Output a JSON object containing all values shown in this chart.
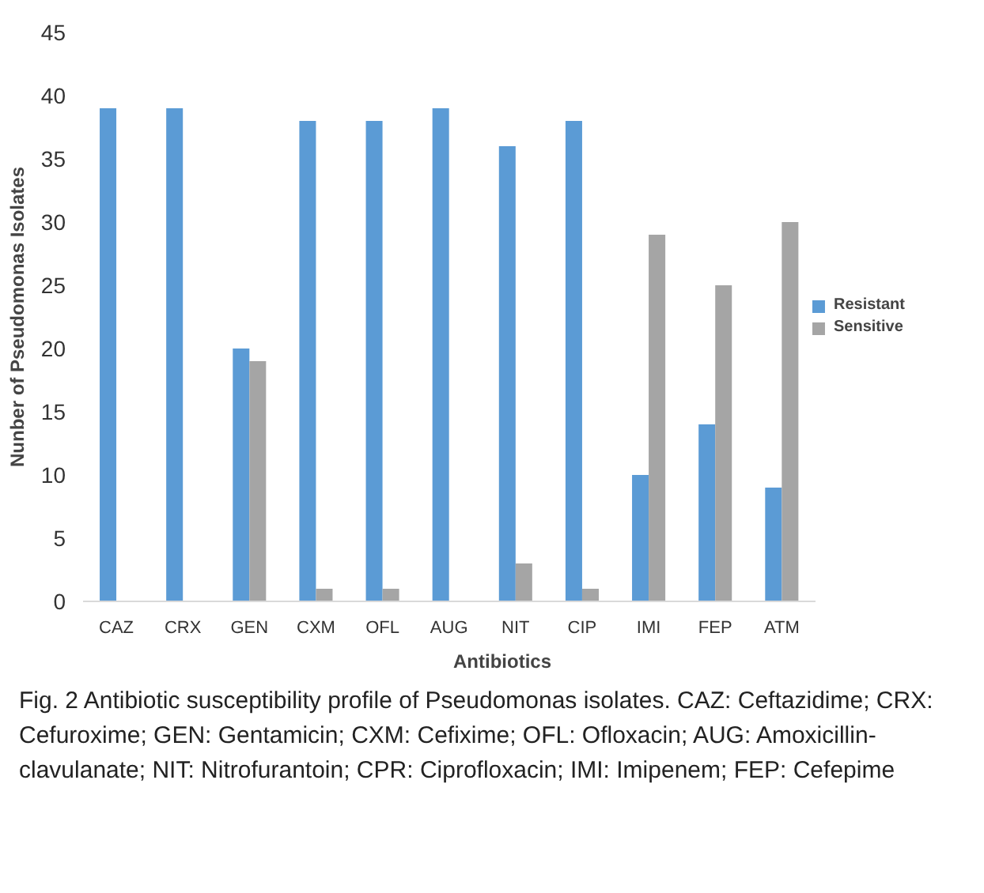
{
  "chart_data": {
    "type": "bar",
    "xlabel": "Antibiotics",
    "ylabel": "Nunber of Pseudomonas Isolates",
    "categories": [
      "CAZ",
      "CRX",
      "GEN",
      "CXM",
      "OFL",
      "AUG",
      "NIT",
      "CIP",
      "IMI",
      "FEP",
      "ATM"
    ],
    "series": [
      {
        "name": "Resistant",
        "color": "#5b9bd5",
        "values": [
          39,
          39,
          20,
          38,
          38,
          39,
          36,
          38,
          10,
          14,
          9
        ]
      },
      {
        "name": "Sensitive",
        "color": "#a5a5a5",
        "values": [
          0,
          0,
          19,
          1,
          1,
          0,
          3,
          1,
          29,
          25,
          30
        ]
      }
    ],
    "ylim": [
      0,
      45
    ],
    "yticks": [
      0,
      5,
      10,
      15,
      20,
      25,
      30,
      35,
      40,
      45
    ],
    "grid": false,
    "legend": "right",
    "annotations": [
      "Fig. 2  Antibiotic susceptibility profile of Pseudomonas isolates. CAZ: Ceftazidime; CRX: Cefuroxime; GEN: Gentamicin; CXM: Cefixime; OFL: Ofloxacin; AUG: Amoxicillin-clavulanate; NIT: Nitrofurantoin; CPR: Ciprofloxacin; IMI: Imipenem; FEP: Cefepime"
    ]
  }
}
